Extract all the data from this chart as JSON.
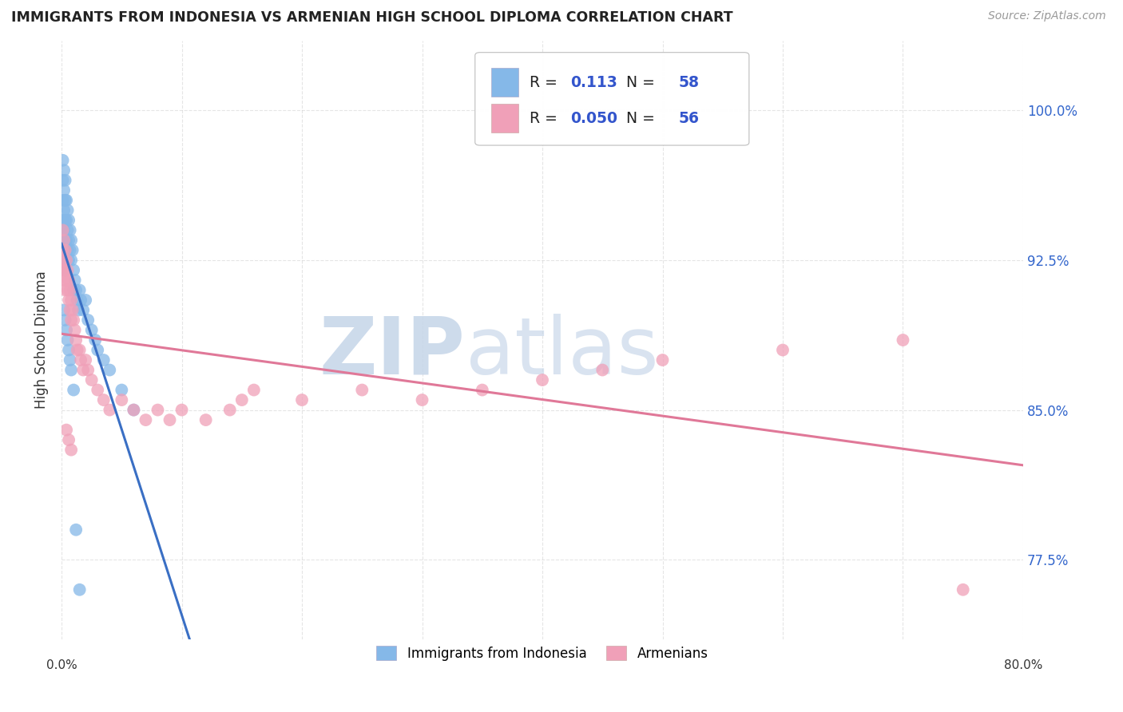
{
  "title": "IMMIGRANTS FROM INDONESIA VS ARMENIAN HIGH SCHOOL DIPLOMA CORRELATION CHART",
  "source": "Source: ZipAtlas.com",
  "ylabel": "High School Diploma",
  "R1": "0.113",
  "N1": "58",
  "R2": "0.050",
  "N2": "56",
  "color_blue": "#85b8e8",
  "color_pink": "#f0a0b8",
  "trend_blue_solid": "#3a6fc4",
  "trend_blue_dash": "#7aaedd",
  "trend_pink": "#e07898",
  "legend_label1": "Immigrants from Indonesia",
  "legend_label2": "Armenians",
  "xmin": 0.0,
  "xmax": 0.8,
  "ymin": 0.735,
  "ymax": 1.035,
  "ytick_vals": [
    0.775,
    0.85,
    0.925,
    1.0
  ],
  "ytick_labels": [
    "77.5%",
    "85.0%",
    "92.5%",
    "100.0%"
  ],
  "indonesia_x": [
    0.001,
    0.001,
    0.001,
    0.001,
    0.001,
    0.002,
    0.002,
    0.002,
    0.002,
    0.002,
    0.002,
    0.003,
    0.003,
    0.003,
    0.003,
    0.003,
    0.004,
    0.004,
    0.004,
    0.005,
    0.005,
    0.005,
    0.006,
    0.006,
    0.006,
    0.007,
    0.007,
    0.008,
    0.008,
    0.009,
    0.01,
    0.01,
    0.011,
    0.012,
    0.013,
    0.014,
    0.015,
    0.016,
    0.018,
    0.02,
    0.022,
    0.025,
    0.028,
    0.03,
    0.035,
    0.04,
    0.05,
    0.06,
    0.002,
    0.003,
    0.004,
    0.005,
    0.006,
    0.007,
    0.008,
    0.01,
    0.012,
    0.015
  ],
  "indonesia_y": [
    0.975,
    0.965,
    0.955,
    0.945,
    0.935,
    0.97,
    0.96,
    0.95,
    0.94,
    0.93,
    0.92,
    0.965,
    0.955,
    0.945,
    0.935,
    0.925,
    0.955,
    0.945,
    0.935,
    0.95,
    0.94,
    0.93,
    0.945,
    0.935,
    0.925,
    0.94,
    0.93,
    0.935,
    0.925,
    0.93,
    0.92,
    0.91,
    0.915,
    0.91,
    0.905,
    0.9,
    0.91,
    0.905,
    0.9,
    0.905,
    0.895,
    0.89,
    0.885,
    0.88,
    0.875,
    0.87,
    0.86,
    0.85,
    0.9,
    0.895,
    0.89,
    0.885,
    0.88,
    0.875,
    0.87,
    0.86,
    0.79,
    0.76
  ],
  "armenian_x": [
    0.001,
    0.001,
    0.001,
    0.002,
    0.002,
    0.002,
    0.003,
    0.003,
    0.003,
    0.004,
    0.004,
    0.005,
    0.005,
    0.006,
    0.006,
    0.007,
    0.007,
    0.008,
    0.008,
    0.009,
    0.01,
    0.011,
    0.012,
    0.013,
    0.015,
    0.016,
    0.018,
    0.02,
    0.022,
    0.025,
    0.03,
    0.035,
    0.04,
    0.05,
    0.06,
    0.07,
    0.08,
    0.09,
    0.1,
    0.12,
    0.14,
    0.15,
    0.16,
    0.2,
    0.25,
    0.3,
    0.35,
    0.4,
    0.45,
    0.5,
    0.6,
    0.7,
    0.75,
    0.004,
    0.006,
    0.008
  ],
  "armenian_y": [
    0.94,
    0.93,
    0.92,
    0.935,
    0.925,
    0.915,
    0.93,
    0.92,
    0.91,
    0.925,
    0.915,
    0.92,
    0.91,
    0.915,
    0.905,
    0.91,
    0.9,
    0.905,
    0.895,
    0.9,
    0.895,
    0.89,
    0.885,
    0.88,
    0.88,
    0.875,
    0.87,
    0.875,
    0.87,
    0.865,
    0.86,
    0.855,
    0.85,
    0.855,
    0.85,
    0.845,
    0.85,
    0.845,
    0.85,
    0.845,
    0.85,
    0.855,
    0.86,
    0.855,
    0.86,
    0.855,
    0.86,
    0.865,
    0.87,
    0.875,
    0.88,
    0.885,
    0.76,
    0.84,
    0.835,
    0.83
  ]
}
